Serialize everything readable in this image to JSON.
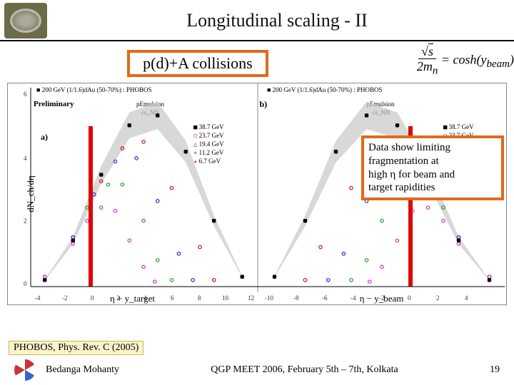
{
  "header": {
    "title": "Longitudinal scaling - II"
  },
  "subtitle": "p(d)+A collisions",
  "formula_tex": "√s / 2mₙ = cosh(y_beam)",
  "plot": {
    "ylabel": "dN_ch/dη",
    "xlabel_a": "η + y_target",
    "xlabel_b": "η − y_beam",
    "title_a": "200 GeV (1/1.6)dAu (50-70%) : PHOBOS",
    "title_b": "200 GeV (1/1.6)dAu (50-70%) : PHOBOS",
    "prelim": "Preliminary",
    "emul_a": "pEmulsion",
    "emul_b": "pEmulsion",
    "sqrt_label": "√s_NN",
    "panel_a_label": "a)",
    "panel_b_label": "b)",
    "x_a": {
      "min": -4,
      "max": 12,
      "step": 2
    },
    "x_b": {
      "min": -12,
      "max": 4,
      "step": 2
    },
    "y": {
      "min": 0,
      "max": 6,
      "step": 2
    },
    "legend": [
      {
        "label": "38.7 GeV",
        "color": "#000000",
        "marker": "square"
      },
      {
        "label": "23.7 GeV",
        "color": "#d01010",
        "marker": "circle"
      },
      {
        "label": "19.4 GeV",
        "color": "#2030c8",
        "marker": "triangle"
      },
      {
        "label": "11.2 GeV",
        "color": "#20a020",
        "marker": "plus"
      },
      {
        "label": "6.7 GeV",
        "color": "#d030d0",
        "marker": "star"
      }
    ],
    "band_color": "#c8c8c8",
    "red_marker_color": "#e00000",
    "background": "#ffffff",
    "curves_a": [
      {
        "color": "#000000",
        "pts": [
          [
            -3,
            0.2
          ],
          [
            -1,
            1.4
          ],
          [
            1,
            3.4
          ],
          [
            3,
            4.9
          ],
          [
            5,
            5.2
          ],
          [
            7,
            4.1
          ],
          [
            9,
            2.0
          ],
          [
            11,
            0.3
          ]
        ]
      },
      {
        "color": "#d01010",
        "pts": [
          [
            -3,
            0.3
          ],
          [
            -1,
            1.5
          ],
          [
            1,
            3.2
          ],
          [
            2.5,
            4.2
          ],
          [
            4,
            4.4
          ],
          [
            6,
            3.0
          ],
          [
            8,
            1.2
          ],
          [
            9,
            0.2
          ]
        ]
      },
      {
        "color": "#2030c8",
        "pts": [
          [
            -3,
            0.3
          ],
          [
            -1,
            1.5
          ],
          [
            0.5,
            2.8
          ],
          [
            2,
            3.8
          ],
          [
            3.5,
            3.9
          ],
          [
            5,
            2.6
          ],
          [
            6.5,
            1.0
          ],
          [
            7.5,
            0.2
          ]
        ]
      },
      {
        "color": "#20a020",
        "pts": [
          [
            -3,
            0.3
          ],
          [
            -1,
            1.4
          ],
          [
            0,
            2.4
          ],
          [
            1.5,
            3.1
          ],
          [
            2.5,
            3.1
          ],
          [
            4,
            2.0
          ],
          [
            5,
            0.8
          ],
          [
            6,
            0.2
          ]
        ]
      },
      {
        "color": "#d030d0",
        "pts": [
          [
            -3,
            0.3
          ],
          [
            -1,
            1.3
          ],
          [
            0,
            2.0
          ],
          [
            1,
            2.4
          ],
          [
            2,
            2.3
          ],
          [
            3,
            1.4
          ],
          [
            4,
            0.6
          ],
          [
            4.8,
            0.15
          ]
        ]
      }
    ],
    "curves_b": [
      {
        "color": "#000000",
        "pts": [
          [
            -11,
            0.3
          ],
          [
            -9,
            2.0
          ],
          [
            -7,
            4.1
          ],
          [
            -5,
            5.2
          ],
          [
            -3,
            4.9
          ],
          [
            -1,
            3.4
          ],
          [
            1,
            1.4
          ],
          [
            3,
            0.2
          ]
        ]
      },
      {
        "color": "#d01010",
        "pts": [
          [
            -9,
            0.2
          ],
          [
            -8,
            1.2
          ],
          [
            -6,
            3.0
          ],
          [
            -4,
            4.4
          ],
          [
            -2.5,
            4.2
          ],
          [
            -1,
            3.2
          ],
          [
            1,
            1.5
          ],
          [
            3,
            0.3
          ]
        ]
      },
      {
        "color": "#2030c8",
        "pts": [
          [
            -7.5,
            0.2
          ],
          [
            -6.5,
            1.0
          ],
          [
            -5,
            2.6
          ],
          [
            -3.5,
            3.9
          ],
          [
            -2,
            3.8
          ],
          [
            -0.5,
            2.8
          ],
          [
            1,
            1.5
          ],
          [
            3,
            0.3
          ]
        ]
      },
      {
        "color": "#20a020",
        "pts": [
          [
            -6,
            0.2
          ],
          [
            -5,
            0.8
          ],
          [
            -4,
            2.0
          ],
          [
            -2.5,
            3.1
          ],
          [
            -1.5,
            3.1
          ],
          [
            0,
            2.4
          ],
          [
            1,
            1.4
          ],
          [
            3,
            0.3
          ]
        ]
      },
      {
        "color": "#d030d0",
        "pts": [
          [
            -4.8,
            0.15
          ],
          [
            -4,
            0.6
          ],
          [
            -3,
            1.4
          ],
          [
            -2,
            2.3
          ],
          [
            -1,
            2.4
          ],
          [
            0,
            2.0
          ],
          [
            1,
            1.3
          ],
          [
            3,
            0.3
          ]
        ]
      }
    ]
  },
  "callout_lines": [
    "Data show limiting",
    "fragmentation at",
    "high η for beam and",
    " target rapidities"
  ],
  "citation": "PHOBOS, Phys. Rev. C (2005)",
  "footer": {
    "author": "Bedanga Mohanty",
    "center": "QGP MEET 2006, February 5th – 7th, Kolkata",
    "page": "19"
  },
  "colors": {
    "accent": "#e06a1b",
    "rule": "#000000"
  }
}
